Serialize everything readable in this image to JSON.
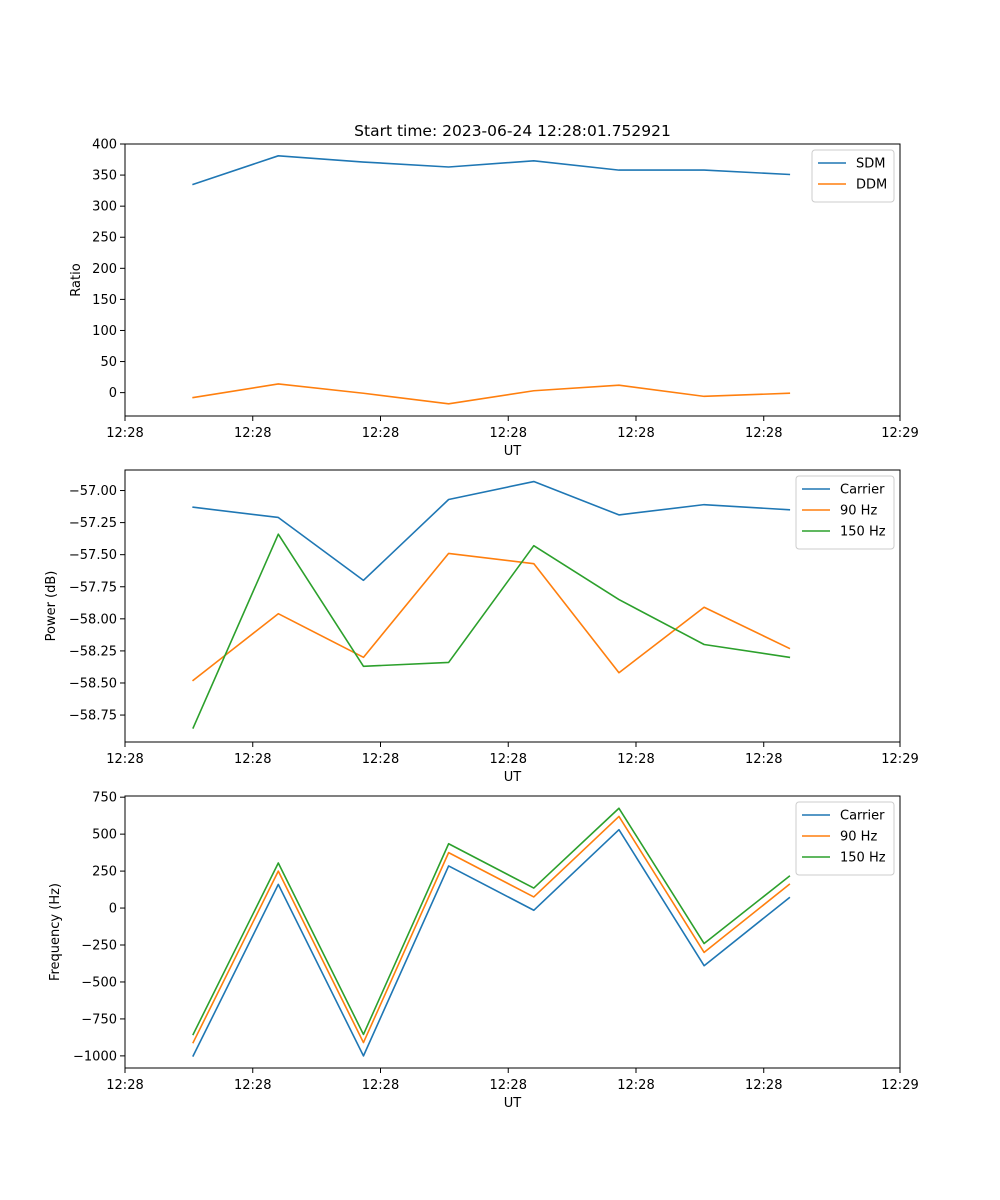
{
  "chart_data": [
    {
      "type": "line",
      "title": "Start time: 2023-06-24 12:28:01.752921",
      "xlabel": "UT",
      "ylabel": "Ratio",
      "x": [
        1,
        2,
        3,
        4,
        5,
        6,
        7,
        8
      ],
      "xlim": [
        0.2,
        9.3
      ],
      "x_ticks": [
        0.2,
        1.7,
        3.2,
        4.7,
        6.2,
        7.7,
        9.3
      ],
      "x_tick_labels": [
        "12:28",
        "12:28",
        "12:28",
        "12:28",
        "12:28",
        "12:28",
        "12:29"
      ],
      "ylim": [
        -37.6,
        400
      ],
      "y_ticks": [
        0,
        50,
        100,
        150,
        200,
        250,
        300,
        350,
        400
      ],
      "y_tick_labels": [
        "0",
        "50",
        "100",
        "150",
        "200",
        "250",
        "300",
        "350",
        "400"
      ],
      "grid": false,
      "legend_position": "top-right",
      "series": [
        {
          "name": "SDM",
          "color": "#1f77b4",
          "values": [
            335,
            381,
            371,
            363,
            373,
            358,
            358,
            351
          ]
        },
        {
          "name": "DDM",
          "color": "#ff7f0e",
          "values": [
            -8,
            14,
            -1,
            -18,
            3,
            12,
            -6,
            -1
          ]
        }
      ]
    },
    {
      "type": "line",
      "title": "",
      "xlabel": "UT",
      "ylabel": "Power (dB)",
      "x": [
        1,
        2,
        3,
        4,
        5,
        6,
        7,
        8
      ],
      "xlim": [
        0.2,
        9.3
      ],
      "x_ticks": [
        0.2,
        1.7,
        3.2,
        4.7,
        6.2,
        7.7,
        9.3
      ],
      "x_tick_labels": [
        "12:28",
        "12:28",
        "12:28",
        "12:28",
        "12:28",
        "12:28",
        "12:29"
      ],
      "ylim": [
        -58.96,
        -56.84
      ],
      "y_ticks": [
        -58.75,
        -58.5,
        -58.25,
        -58.0,
        -57.75,
        -57.5,
        -57.25,
        -57.0
      ],
      "y_tick_labels": [
        "−58.75",
        "−58.50",
        "−58.25",
        "−58.00",
        "−57.75",
        "−57.50",
        "−57.25",
        "−57.00"
      ],
      "grid": false,
      "legend_position": "top-right",
      "series": [
        {
          "name": "Carrier",
          "color": "#1f77b4",
          "values": [
            -57.13,
            -57.21,
            -57.7,
            -57.07,
            -56.93,
            -57.19,
            -57.11,
            -57.15
          ]
        },
        {
          "name": "90 Hz",
          "color": "#ff7f0e",
          "values": [
            -58.48,
            -57.96,
            -58.3,
            -57.49,
            -57.57,
            -58.42,
            -57.91,
            -58.23
          ]
        },
        {
          "name": "150 Hz",
          "color": "#2ca02c",
          "values": [
            -58.85,
            -57.34,
            -58.37,
            -58.34,
            -57.43,
            -57.85,
            -58.2,
            -58.3
          ]
        }
      ]
    },
    {
      "type": "line",
      "title": "",
      "xlabel": "UT",
      "ylabel": "Frequency (Hz)",
      "x": [
        1,
        2,
        3,
        4,
        5,
        6,
        7,
        8
      ],
      "xlim": [
        0.2,
        9.3
      ],
      "x_ticks": [
        0.2,
        1.7,
        3.2,
        4.7,
        6.2,
        7.7,
        9.3
      ],
      "x_tick_labels": [
        "12:28",
        "12:28",
        "12:28",
        "12:28",
        "12:28",
        "12:28",
        "12:29"
      ],
      "ylim": [
        -1082,
        758
      ],
      "y_ticks": [
        -1000,
        -750,
        -500,
        -250,
        0,
        250,
        500,
        750
      ],
      "y_tick_labels": [
        "−1000",
        "−750",
        "−500",
        "−250",
        "0",
        "250",
        "500",
        "750"
      ],
      "grid": false,
      "legend_position": "top-right",
      "series": [
        {
          "name": "Carrier",
          "color": "#1f77b4",
          "values": [
            -1000,
            160,
            -1000,
            285,
            -15,
            530,
            -390,
            70
          ]
        },
        {
          "name": "90 Hz",
          "color": "#ff7f0e",
          "values": [
            -910,
            250,
            -910,
            375,
            75,
            620,
            -300,
            160
          ]
        },
        {
          "name": "150 Hz",
          "color": "#2ca02c",
          "values": [
            -855,
            305,
            -855,
            435,
            135,
            675,
            -240,
            215
          ]
        }
      ]
    }
  ]
}
